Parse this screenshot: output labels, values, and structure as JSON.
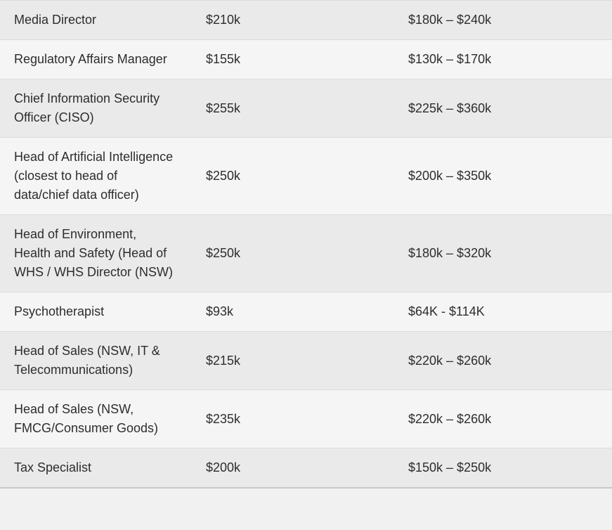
{
  "table": {
    "columns": [
      "job_title",
      "average_salary",
      "salary_range"
    ],
    "rows": [
      {
        "title": "Media Director",
        "salary": "$210k",
        "range": "$180k – $240k"
      },
      {
        "title": "Regulatory Affairs Manager",
        "salary": "$155k",
        "range": "$130k – $170k"
      },
      {
        "title": "Chief Information Security Officer (CISO)",
        "salary": "$255k",
        "range": "$225k – $360k"
      },
      {
        "title": "Head of Artificial Intelligence (closest to head of data/chief data officer)",
        "salary": "$250k",
        "range": "$200k – $350k"
      },
      {
        "title": "Head of Environment, Health and Safety (Head of WHS / WHS Director (NSW)",
        "salary": "$250k",
        "range": "$180k – $320k"
      },
      {
        "title": "Psychotherapist",
        "salary": "$93k",
        "range": "$64K - $114K"
      },
      {
        "title": "Head of Sales (NSW, IT & Telecommunications)",
        "salary": "$215k",
        "range": "$220k – $260k"
      },
      {
        "title": "Head of Sales (NSW, FMCG/Consumer Goods)",
        "salary": "$235k",
        "range": "$220k – $260k"
      },
      {
        "title": "Tax Specialist",
        "salary": "$200k",
        "range": "$150k – $250k"
      }
    ],
    "colors": {
      "row_odd_bg": "#eaeaea",
      "row_even_bg": "#f5f5f5",
      "border": "#dcdcdc",
      "border_strong": "#c9c9c9",
      "text": "#2d2d2d"
    }
  }
}
